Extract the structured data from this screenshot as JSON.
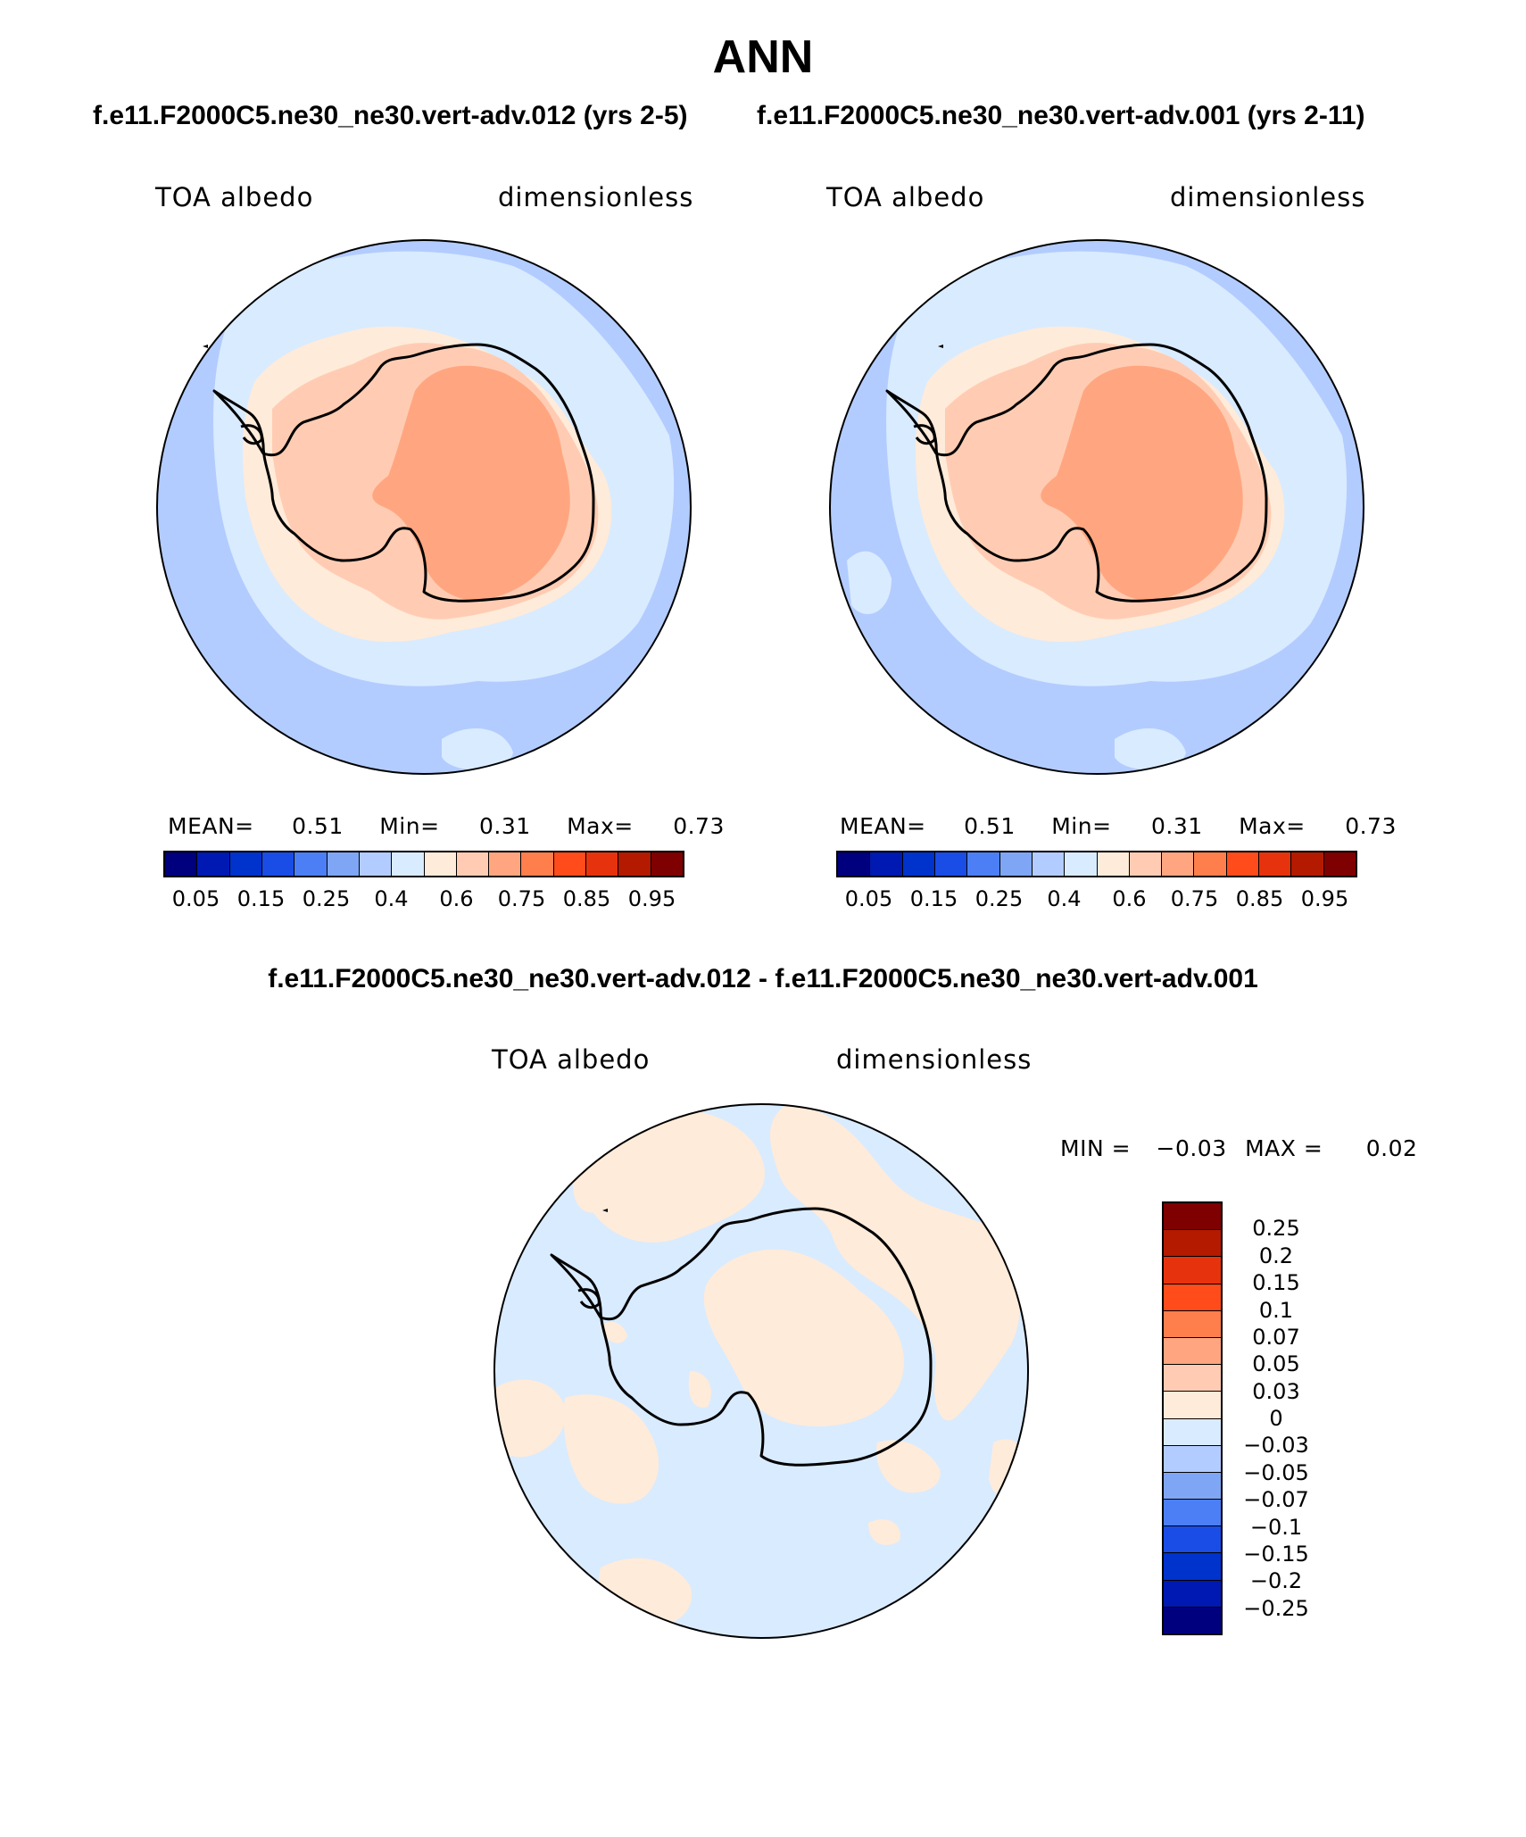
{
  "title": "ANN",
  "panels": [
    {
      "case_label": "f.e11.F2000C5.ne30_ne30.vert-adv.012 (yrs 2-5)",
      "variable": "TOA albedo",
      "units": "dimensionless",
      "mean_label": "MEAN=",
      "mean_value": "0.51",
      "min_label": "Min=",
      "min_value": "0.31",
      "max_label": "Max=",
      "max_value": "0.73"
    },
    {
      "case_label": "f.e11.F2000C5.ne30_ne30.vert-adv.001 (yrs 2-11)",
      "variable": "TOA albedo",
      "units": "dimensionless",
      "mean_label": "MEAN=",
      "mean_value": "0.51",
      "min_label": "Min=",
      "min_value": "0.31",
      "max_label": "Max=",
      "max_value": "0.73"
    }
  ],
  "difference": {
    "title": "f.e11.F2000C5.ne30_ne30.vert-adv.012 - f.e11.F2000C5.ne30_ne30.vert-adv.001",
    "variable": "TOA albedo",
    "units": "dimensionless",
    "min_label": "MIN =",
    "min_value": "−0.03",
    "max_label": "MAX =",
    "max_value": "0.02"
  },
  "colorbar_abs": {
    "colors": [
      "#00007f",
      "#0019b2",
      "#0033cc",
      "#1a4ce6",
      "#4c7ff5",
      "#7fa6f5",
      "#b3ccff",
      "#d9ebff",
      "#ffebd9",
      "#ffccb3",
      "#ffa680",
      "#ff7f4c",
      "#ff4c1a",
      "#e6330d",
      "#b31a00",
      "#7f0000"
    ],
    "ticks": [
      "0.05",
      "0.15",
      "0.25",
      "0.4",
      "0.6",
      "0.75",
      "0.85",
      "0.95"
    ]
  },
  "colorbar_diff": {
    "colors_top_to_bottom": [
      "#7f0000",
      "#b31a00",
      "#e6330d",
      "#ff4c1a",
      "#ff7f4c",
      "#ffa680",
      "#ffccb3",
      "#ffebd9",
      "#d9ebff",
      "#b3ccff",
      "#7fa6f5",
      "#4c7ff5",
      "#1a4ce6",
      "#0033cc",
      "#0019b2",
      "#00007f"
    ],
    "ticks": [
      "0.25",
      "0.2",
      "0.15",
      "0.1",
      "0.07",
      "0.05",
      "0.03",
      "0",
      "−0.03",
      "−0.05",
      "−0.07",
      "−0.1",
      "−0.15",
      "−0.2",
      "−0.25"
    ]
  },
  "colors": {
    "outer_band": "#b3ccff",
    "inner_band": "#d9ebff",
    "coast_band": "#ffebd9",
    "land_mid": "#ffccb3",
    "plateau": "#ffa680",
    "diff_neg": "#d9ebff",
    "diff_pos": "#ffebd9"
  }
}
